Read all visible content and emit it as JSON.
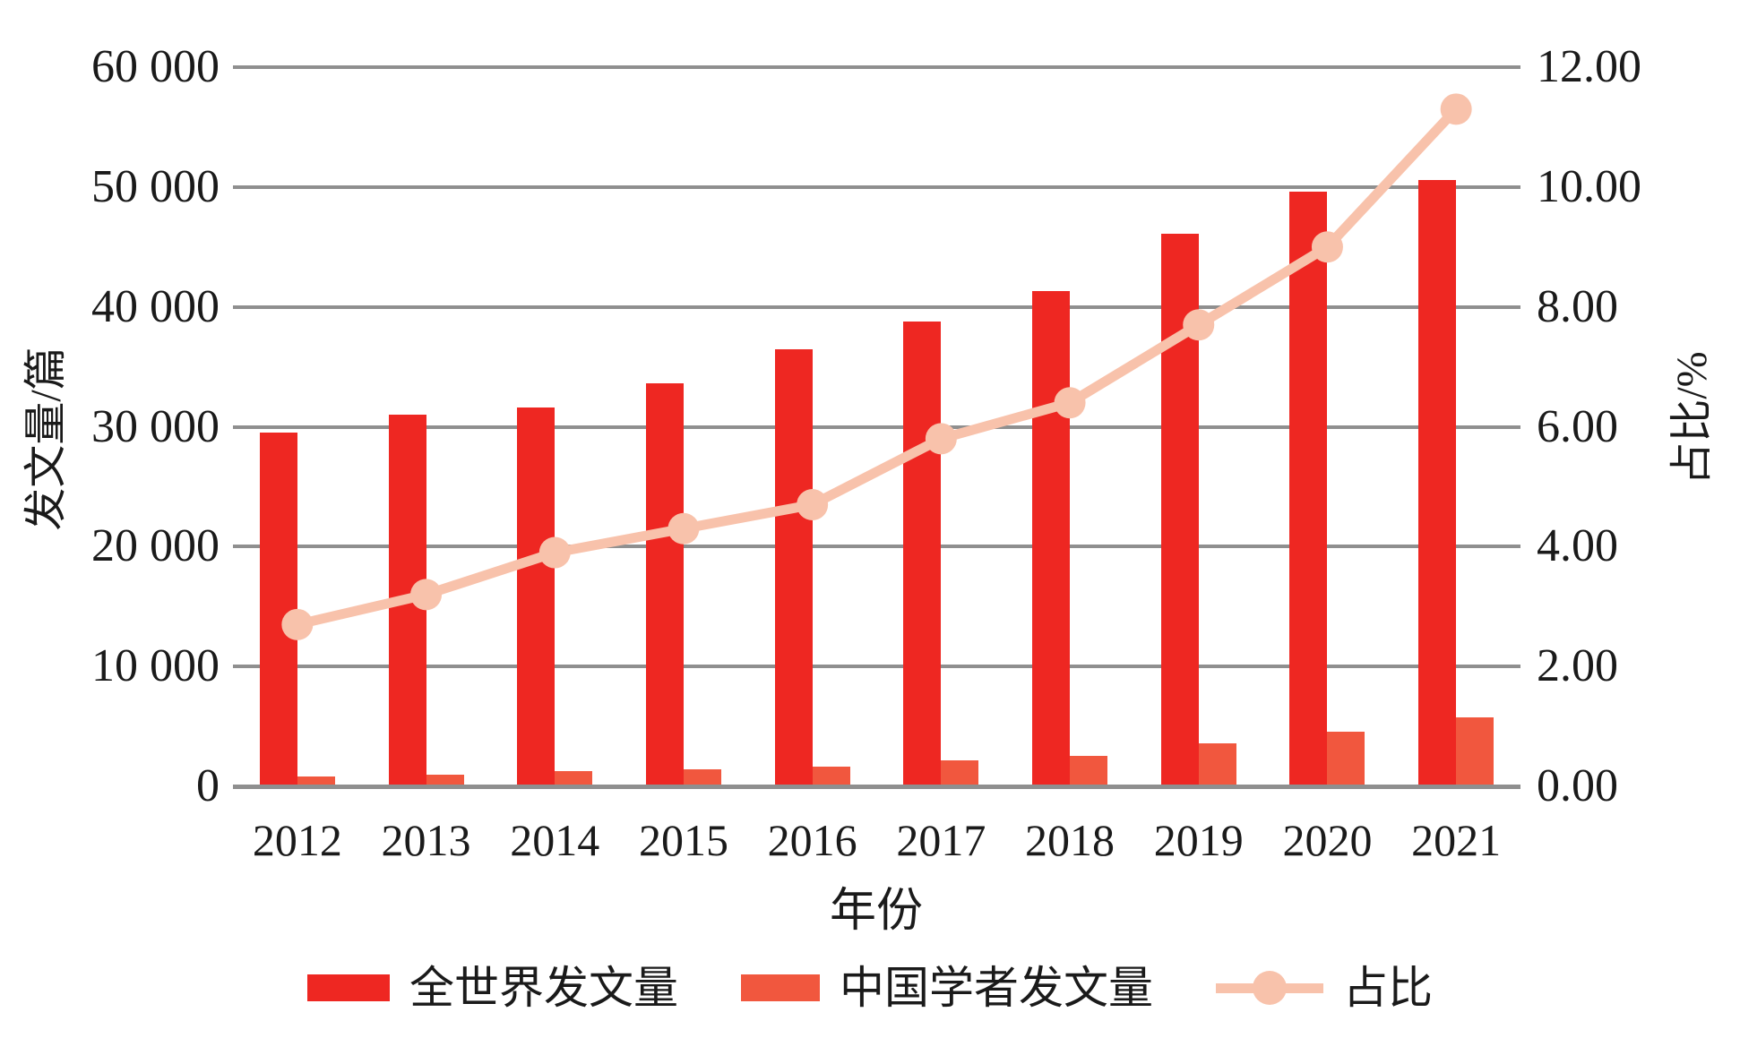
{
  "chart_data": {
    "type": "bar+line",
    "categories": [
      "2012",
      "2013",
      "2014",
      "2015",
      "2016",
      "2017",
      "2018",
      "2019",
      "2020",
      "2021"
    ],
    "series": [
      {
        "name": "全世界发文量",
        "type": "bar",
        "axis": "left",
        "color": "#ee2722",
        "values": [
          29500,
          31000,
          31600,
          33600,
          36500,
          38800,
          41300,
          46100,
          49600,
          50600
        ]
      },
      {
        "name": "中国学者发文量",
        "type": "bar",
        "axis": "left",
        "color": "#f1573e",
        "values": [
          850,
          1000,
          1250,
          1400,
          1650,
          2200,
          2550,
          3600,
          4550,
          5750
        ]
      },
      {
        "name": "占比",
        "type": "line",
        "axis": "right",
        "color": "#f8c2ab",
        "marker": "circle",
        "values": [
          2.7,
          3.2,
          3.9,
          4.3,
          4.7,
          5.8,
          6.4,
          7.7,
          9.0,
          11.3
        ]
      }
    ],
    "left_axis": {
      "title": "发文量/篇",
      "min": 0,
      "max": 60000,
      "step": 10000,
      "ticks": [
        "0",
        "10 000",
        "20 000",
        "30 000",
        "40 000",
        "50 000",
        "60 000"
      ]
    },
    "right_axis": {
      "title": "占比/%",
      "min": 0,
      "max": 12,
      "step": 2,
      "ticks": [
        "0.00",
        "2.00",
        "4.00",
        "6.00",
        "8.00",
        "10.00",
        "12.00"
      ]
    },
    "x_axis": {
      "title": "年份"
    },
    "legend_position": "bottom",
    "grid": "horizontal",
    "gridline_color": "#8f8f8f",
    "text_color": "#1a1a1a"
  }
}
